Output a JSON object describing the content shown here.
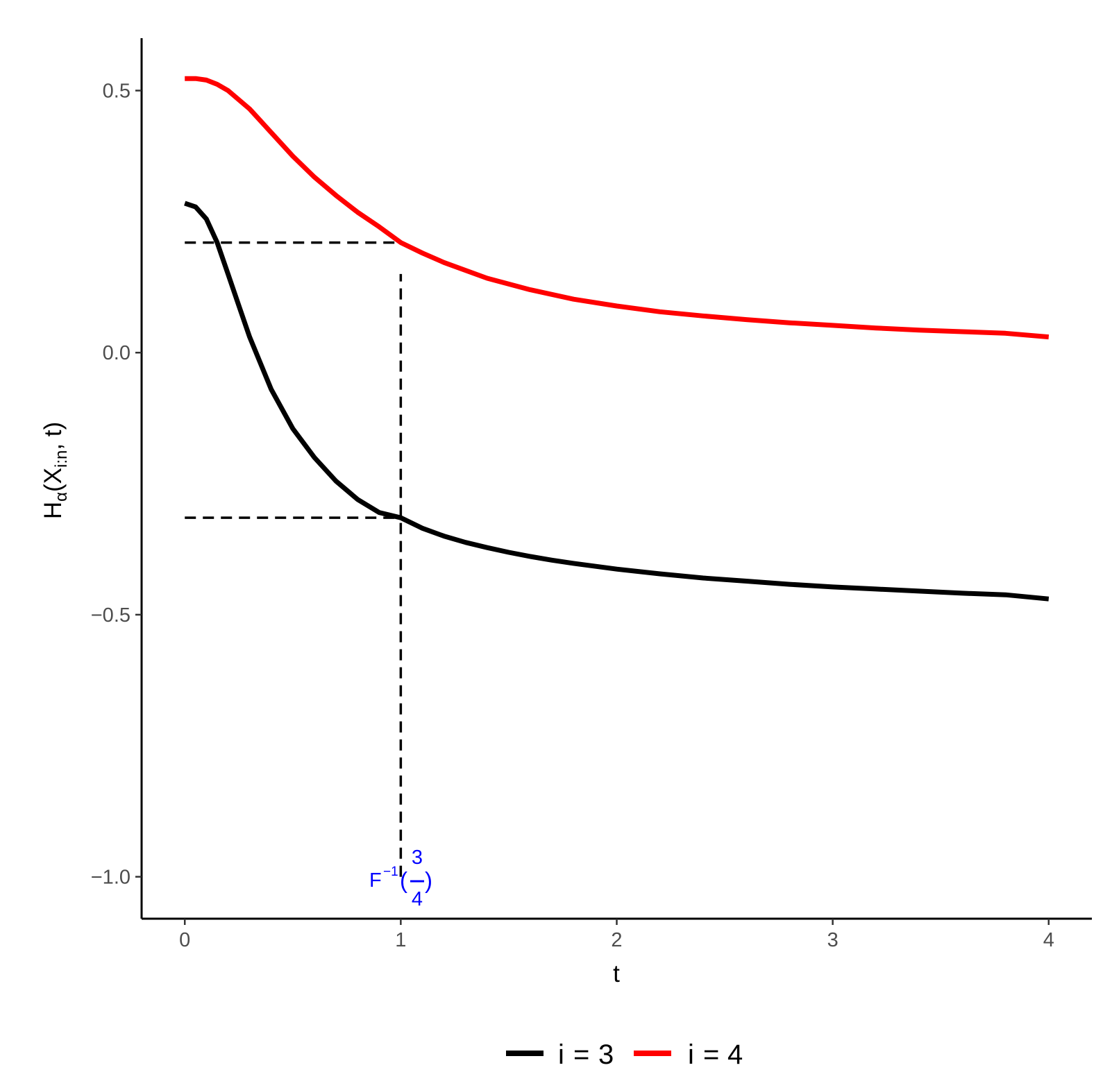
{
  "chart_data": {
    "type": "line",
    "title": "",
    "xlabel": "t",
    "ylabel": {
      "main": "H",
      "alpha": "α",
      "open": "(X",
      "sub": "i:n",
      "close": ", t)"
    },
    "xlim": [
      -0.2,
      4.2
    ],
    "ylim": [
      -1.08,
      0.6
    ],
    "xticks": [
      0,
      1,
      2,
      3,
      4
    ],
    "xtick_labels": [
      "0",
      "1",
      "2",
      "3",
      "4"
    ],
    "yticks": [
      -1.0,
      -0.5,
      0.0,
      0.5
    ],
    "ytick_labels": [
      "−1.0",
      "−0.5",
      "0.0",
      "0.5"
    ],
    "grid": false,
    "legend_position": "bottom",
    "series": [
      {
        "name": "i = 3",
        "legend": {
          "var": "i",
          "eq": "=",
          "val": "3"
        },
        "color": "#000000",
        "x": [
          0,
          0.05,
          0.1,
          0.15,
          0.2,
          0.25,
          0.3,
          0.4,
          0.5,
          0.6,
          0.7,
          0.8,
          0.9,
          1.0,
          1.1,
          1.2,
          1.3,
          1.4,
          1.5,
          1.6,
          1.7,
          1.8,
          2.0,
          2.2,
          2.4,
          2.6,
          2.8,
          3.0,
          3.2,
          3.4,
          3.6,
          3.8,
          4.0
        ],
        "y": [
          0.285,
          0.278,
          0.255,
          0.21,
          0.15,
          0.09,
          0.03,
          -0.07,
          -0.145,
          -0.2,
          -0.245,
          -0.28,
          -0.305,
          -0.315,
          -0.335,
          -0.35,
          -0.362,
          -0.372,
          -0.381,
          -0.389,
          -0.396,
          -0.402,
          -0.413,
          -0.422,
          -0.43,
          -0.436,
          -0.442,
          -0.447,
          -0.451,
          -0.455,
          -0.459,
          -0.462,
          -0.47
        ]
      },
      {
        "name": "i = 4",
        "legend": {
          "var": "i",
          "eq": "=",
          "val": "4"
        },
        "color": "#ff0000",
        "x": [
          0,
          0.05,
          0.1,
          0.15,
          0.2,
          0.3,
          0.4,
          0.5,
          0.6,
          0.7,
          0.8,
          0.9,
          1.0,
          1.1,
          1.2,
          1.4,
          1.6,
          1.8,
          2.0,
          2.2,
          2.4,
          2.6,
          2.8,
          3.0,
          3.2,
          3.4,
          3.6,
          3.8,
          4.0
        ],
        "y": [
          0.523,
          0.523,
          0.52,
          0.512,
          0.5,
          0.465,
          0.42,
          0.375,
          0.335,
          0.3,
          0.268,
          0.24,
          0.21,
          0.19,
          0.172,
          0.142,
          0.12,
          0.102,
          0.089,
          0.078,
          0.07,
          0.063,
          0.057,
          0.052,
          0.047,
          0.043,
          0.04,
          0.037,
          0.03
        ]
      }
    ],
    "reference_lines": {
      "color": "#000000",
      "style": "dashed",
      "vertical": {
        "x": 1,
        "y_from": -1.0,
        "y_to": 0.15
      },
      "horizontal": [
        {
          "y": 0.21,
          "x_from": 0,
          "x_to": 1
        },
        {
          "y": -0.315,
          "x_from": 0,
          "x_to": 1
        }
      ]
    },
    "annotation": {
      "x": 1,
      "y": -1.0,
      "color": "#0000ff",
      "base": "F",
      "sup": "−1",
      "open": "(",
      "numerator": "3",
      "denominator": "4",
      "close": ")"
    }
  }
}
